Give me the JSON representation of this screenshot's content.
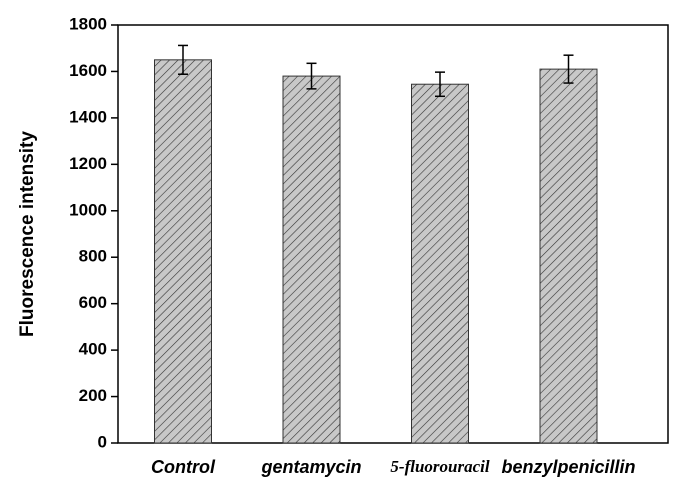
{
  "chart_data": {
    "type": "bar",
    "y_label": "Fluorescence intensity",
    "categories": [
      "Control",
      "gentamycin",
      "5-fluorouracil",
      "benzylpenicillin"
    ],
    "values": [
      1650,
      1580,
      1545,
      1610
    ],
    "errors": [
      62,
      55,
      52,
      60
    ],
    "color": "#c8c8c8",
    "ylim": [
      0,
      1800
    ],
    "yticks": [
      0,
      200,
      400,
      600,
      800,
      1000,
      1200,
      1400,
      1600,
      1800
    ]
  }
}
